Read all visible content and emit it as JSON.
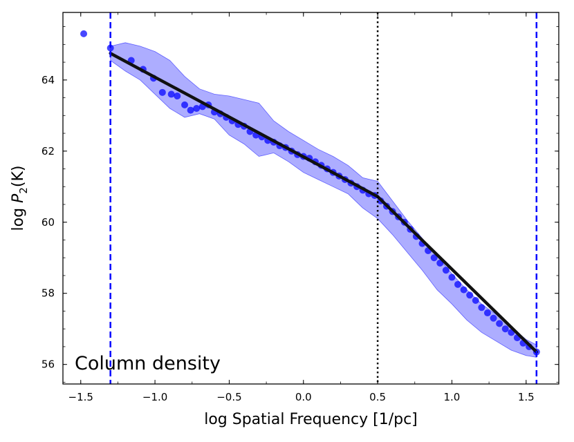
{
  "chart_data": {
    "type": "scatter",
    "title": "",
    "xlabel": "log Spatial Frequency [1/pc]",
    "ylabel_prefix": "log ",
    "ylabel_var": "P",
    "ylabel_sub": "2",
    "ylabel_suffix": "(K)",
    "annotation": "Column density",
    "xlim": [
      -1.62,
      1.72
    ],
    "ylim": [
      55.45,
      65.9
    ],
    "x_ticks": [
      -1.5,
      -1.0,
      -0.5,
      0.0,
      0.5,
      1.0,
      1.5
    ],
    "x_tick_labels": [
      "−1.5",
      "−1.0",
      "−0.5",
      "0.0",
      "0.5",
      "1.0",
      "1.5"
    ],
    "y_ticks": [
      56,
      58,
      60,
      62,
      64
    ],
    "y_tick_labels": [
      "56",
      "58",
      "60",
      "62",
      "64"
    ],
    "vlines": [
      {
        "x": -1.3,
        "style": "dashed",
        "color": "#0000ff"
      },
      {
        "x": 0.5,
        "style": "dotted",
        "color": "#000000"
      },
      {
        "x": 1.57,
        "style": "dashed",
        "color": "#0000ff"
      }
    ],
    "fit_segments": [
      {
        "x": [
          -1.3,
          0.5
        ],
        "y": [
          64.75,
          60.72
        ]
      },
      {
        "x": [
          0.5,
          1.57
        ],
        "y": [
          60.72,
          56.35
        ]
      }
    ],
    "band": {
      "upper": [
        [
          -1.3,
          64.95
        ],
        [
          -1.2,
          65.05
        ],
        [
          -1.1,
          64.95
        ],
        [
          -1.0,
          64.8
        ],
        [
          -0.9,
          64.55
        ],
        [
          -0.8,
          64.1
        ],
        [
          -0.7,
          63.75
        ],
        [
          -0.6,
          63.6
        ],
        [
          -0.5,
          63.55
        ],
        [
          -0.4,
          63.45
        ],
        [
          -0.3,
          63.35
        ],
        [
          -0.2,
          62.85
        ],
        [
          -0.1,
          62.55
        ],
        [
          0.0,
          62.3
        ],
        [
          0.1,
          62.05
        ],
        [
          0.2,
          61.85
        ],
        [
          0.3,
          61.6
        ],
        [
          0.4,
          61.25
        ],
        [
          0.5,
          61.15
        ],
        [
          0.6,
          60.6
        ],
        [
          0.7,
          60.05
        ],
        [
          0.8,
          59.55
        ],
        [
          0.9,
          59.05
        ],
        [
          1.0,
          58.55
        ],
        [
          1.1,
          58.1
        ],
        [
          1.2,
          57.7
        ],
        [
          1.3,
          57.4
        ],
        [
          1.4,
          57.05
        ],
        [
          1.5,
          56.7
        ],
        [
          1.57,
          56.55
        ]
      ],
      "lower": [
        [
          -1.3,
          64.55
        ],
        [
          -1.2,
          64.25
        ],
        [
          -1.1,
          64.0
        ],
        [
          -1.0,
          63.6
        ],
        [
          -0.9,
          63.2
        ],
        [
          -0.8,
          62.95
        ],
        [
          -0.7,
          63.05
        ],
        [
          -0.6,
          62.9
        ],
        [
          -0.5,
          62.45
        ],
        [
          -0.4,
          62.2
        ],
        [
          -0.3,
          61.85
        ],
        [
          -0.2,
          61.95
        ],
        [
          -0.1,
          61.7
        ],
        [
          0.0,
          61.4
        ],
        [
          0.1,
          61.2
        ],
        [
          0.2,
          61.0
        ],
        [
          0.3,
          60.8
        ],
        [
          0.4,
          60.4
        ],
        [
          0.5,
          60.1
        ],
        [
          0.6,
          59.65
        ],
        [
          0.7,
          59.15
        ],
        [
          0.8,
          58.65
        ],
        [
          0.9,
          58.1
        ],
        [
          1.0,
          57.7
        ],
        [
          1.1,
          57.25
        ],
        [
          1.2,
          56.9
        ],
        [
          1.3,
          56.65
        ],
        [
          1.4,
          56.4
        ],
        [
          1.5,
          56.25
        ],
        [
          1.57,
          56.2
        ]
      ]
    },
    "series": [
      {
        "name": "P2",
        "color": "#0000ff",
        "x": [
          -1.48,
          -1.3,
          -1.16,
          -1.08,
          -1.01,
          -0.95,
          -0.89,
          -0.85,
          -0.8,
          -0.76,
          -0.72,
          -0.68,
          -0.64,
          -0.6,
          -0.56,
          -0.52,
          -0.48,
          -0.44,
          -0.4,
          -0.36,
          -0.32,
          -0.28,
          -0.24,
          -0.2,
          -0.16,
          -0.12,
          -0.08,
          -0.04,
          0.0,
          0.04,
          0.08,
          0.12,
          0.16,
          0.2,
          0.24,
          0.28,
          0.32,
          0.36,
          0.4,
          0.44,
          0.48,
          0.52,
          0.56,
          0.6,
          0.64,
          0.68,
          0.72,
          0.76,
          0.8,
          0.84,
          0.88,
          0.92,
          0.96,
          1.0,
          1.04,
          1.08,
          1.12,
          1.16,
          1.2,
          1.24,
          1.28,
          1.32,
          1.36,
          1.4,
          1.44,
          1.48,
          1.52,
          1.57
        ],
        "y": [
          65.3,
          64.9,
          64.55,
          64.3,
          64.05,
          63.65,
          63.6,
          63.55,
          63.3,
          63.15,
          63.2,
          63.25,
          63.3,
          63.1,
          63.05,
          62.95,
          62.85,
          62.75,
          62.7,
          62.55,
          62.45,
          62.4,
          62.3,
          62.25,
          62.15,
          62.1,
          62.0,
          61.9,
          61.85,
          61.8,
          61.7,
          61.6,
          61.5,
          61.4,
          61.3,
          61.2,
          61.1,
          61.0,
          60.9,
          60.8,
          60.75,
          60.6,
          60.45,
          60.3,
          60.15,
          60.0,
          59.8,
          59.6,
          59.4,
          59.2,
          59.0,
          58.85,
          58.65,
          58.45,
          58.25,
          58.1,
          57.95,
          57.8,
          57.6,
          57.45,
          57.3,
          57.15,
          57.0,
          56.9,
          56.75,
          56.6,
          56.5,
          56.35
        ]
      }
    ]
  }
}
